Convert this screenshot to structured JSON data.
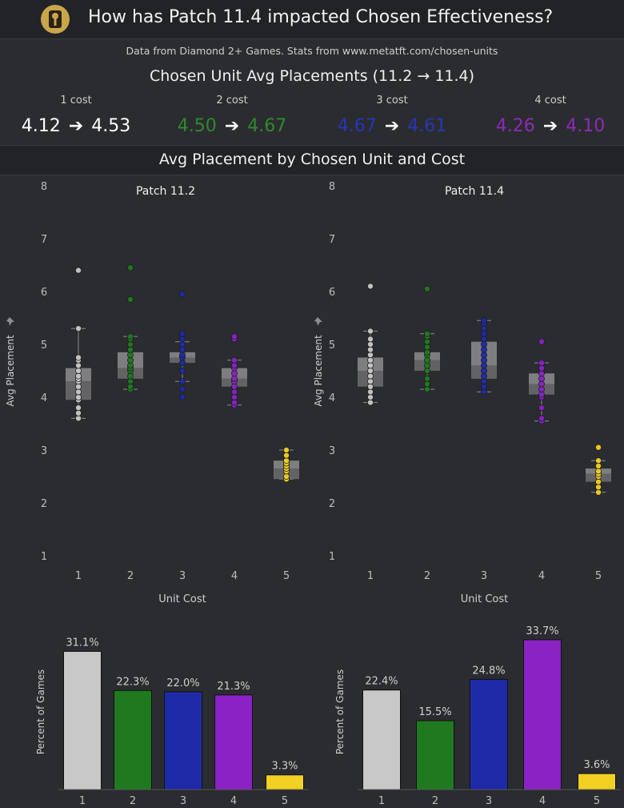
{
  "header": {
    "title": "How has Patch 11.4 impacted Chosen Effectiveness?",
    "logo_icon": "tft-tactician-icon"
  },
  "source_text": "Data from Diamond 2+ Games. Stats from www.metatft.com/chosen-units",
  "summary": {
    "title": "Chosen Unit Avg Placements (11.2 → 11.4)",
    "arrow": "➔",
    "costs": [
      {
        "label": "1 cost",
        "before": "4.12",
        "after": "4.53",
        "color": "#ffffff"
      },
      {
        "label": "2 cost",
        "before": "4.50",
        "after": "4.67",
        "color": "#2e8b2e"
      },
      {
        "label": "3 cost",
        "before": "4.67",
        "after": "4.61",
        "color": "#2835b8"
      },
      {
        "label": "4 cost",
        "before": "4.26",
        "after": "4.10",
        "color": "#8e2ab8"
      }
    ]
  },
  "section_title": "Avg Placement by Chosen Unit and Cost",
  "colors": {
    "cost_1": "#c8c8c8",
    "cost_2": "#1f7a1f",
    "cost_3": "#1f2aa8",
    "cost_4": "#8a22c4",
    "cost_5": "#f2d024"
  },
  "chart_data": [
    {
      "type": "box",
      "title": "Patch 11.2",
      "xlabel": "Unit Cost",
      "ylabel": "Avg Placement",
      "ylim": [
        1,
        8
      ],
      "categories": [
        "1",
        "2",
        "3",
        "4",
        "5"
      ],
      "yticks": [
        "1",
        "2",
        "3",
        "4",
        "5",
        "6",
        "7",
        "8"
      ],
      "boxes": [
        {
          "min": 3.6,
          "q1": 3.95,
          "median": 4.3,
          "q3": 4.55,
          "max": 5.3,
          "points": [
            3.6,
            3.7,
            3.8,
            3.95,
            4.0,
            4.1,
            4.2,
            4.3,
            4.35,
            4.4,
            4.5,
            4.6,
            4.7,
            4.75,
            5.3,
            6.4
          ]
        },
        {
          "min": 4.15,
          "q1": 4.35,
          "median": 4.55,
          "q3": 4.85,
          "max": 5.15,
          "points": [
            4.15,
            4.2,
            4.3,
            4.4,
            4.5,
            4.55,
            4.6,
            4.7,
            4.8,
            4.9,
            5.0,
            5.1,
            5.15,
            5.85,
            6.45
          ]
        },
        {
          "min": 4.3,
          "q1": 4.65,
          "median": 4.75,
          "q3": 4.85,
          "max": 5.05,
          "points": [
            4.0,
            4.15,
            4.3,
            4.5,
            4.65,
            4.75,
            4.8,
            4.9,
            5.0,
            5.1,
            5.2,
            5.95
          ]
        },
        {
          "min": 3.85,
          "q1": 4.2,
          "median": 4.35,
          "q3": 4.55,
          "max": 4.7,
          "points": [
            3.85,
            3.9,
            4.0,
            4.1,
            4.2,
            4.3,
            4.35,
            4.45,
            4.55,
            4.6,
            4.7,
            5.1,
            5.15
          ]
        },
        {
          "min": 2.45,
          "q1": 2.45,
          "median": 2.65,
          "q3": 2.8,
          "max": 3.0,
          "points": [
            2.45,
            2.5,
            2.6,
            2.65,
            2.7,
            2.75,
            2.8,
            2.9,
            3.0
          ]
        }
      ]
    },
    {
      "type": "box",
      "title": "Patch 11.4",
      "xlabel": "Unit Cost",
      "ylabel": "Avg Placement",
      "ylim": [
        1,
        8
      ],
      "categories": [
        "1",
        "2",
        "3",
        "4",
        "5"
      ],
      "yticks": [
        "1",
        "2",
        "3",
        "4",
        "5",
        "6",
        "7",
        "8"
      ],
      "boxes": [
        {
          "min": 3.9,
          "q1": 4.2,
          "median": 4.5,
          "q3": 4.75,
          "max": 5.25,
          "points": [
            3.9,
            4.0,
            4.1,
            4.2,
            4.3,
            4.4,
            4.5,
            4.6,
            4.7,
            4.8,
            4.9,
            5.0,
            5.1,
            5.25,
            6.1
          ]
        },
        {
          "min": 4.15,
          "q1": 4.5,
          "median": 4.7,
          "q3": 4.85,
          "max": 5.2,
          "points": [
            4.15,
            4.25,
            4.35,
            4.5,
            4.6,
            4.7,
            4.8,
            4.85,
            4.95,
            5.05,
            5.15,
            5.2,
            6.05
          ]
        },
        {
          "min": 4.1,
          "q1": 4.35,
          "median": 4.6,
          "q3": 5.05,
          "max": 5.45,
          "points": [
            4.1,
            4.2,
            4.3,
            4.4,
            4.5,
            4.6,
            4.7,
            4.8,
            4.9,
            5.0,
            5.1,
            5.2,
            5.3,
            5.4,
            5.45
          ]
        },
        {
          "min": 3.55,
          "q1": 4.05,
          "median": 4.25,
          "q3": 4.45,
          "max": 4.65,
          "points": [
            3.55,
            3.6,
            3.8,
            4.0,
            4.05,
            4.15,
            4.25,
            4.35,
            4.45,
            4.55,
            4.65,
            5.05
          ]
        },
        {
          "min": 2.2,
          "q1": 2.4,
          "median": 2.55,
          "q3": 2.65,
          "max": 2.8,
          "points": [
            2.2,
            2.3,
            2.4,
            2.5,
            2.55,
            2.6,
            2.7,
            2.8,
            3.05
          ]
        }
      ]
    },
    {
      "type": "bar",
      "title": "",
      "ylabel": "Percent of Games",
      "categories": [
        "1",
        "2",
        "3",
        "4",
        "5"
      ],
      "values": [
        31.1,
        22.3,
        22.0,
        21.3,
        3.3
      ],
      "labels": [
        "31.1%",
        "22.3%",
        "22.0%",
        "21.3%",
        "3.3%"
      ]
    },
    {
      "type": "bar",
      "title": "",
      "ylabel": "Percent of Games",
      "categories": [
        "1",
        "2",
        "3",
        "4",
        "5"
      ],
      "values": [
        22.4,
        15.5,
        24.8,
        33.7,
        3.6
      ],
      "labels": [
        "22.4%",
        "15.5%",
        "24.8%",
        "33.7%",
        "3.6%"
      ]
    }
  ]
}
